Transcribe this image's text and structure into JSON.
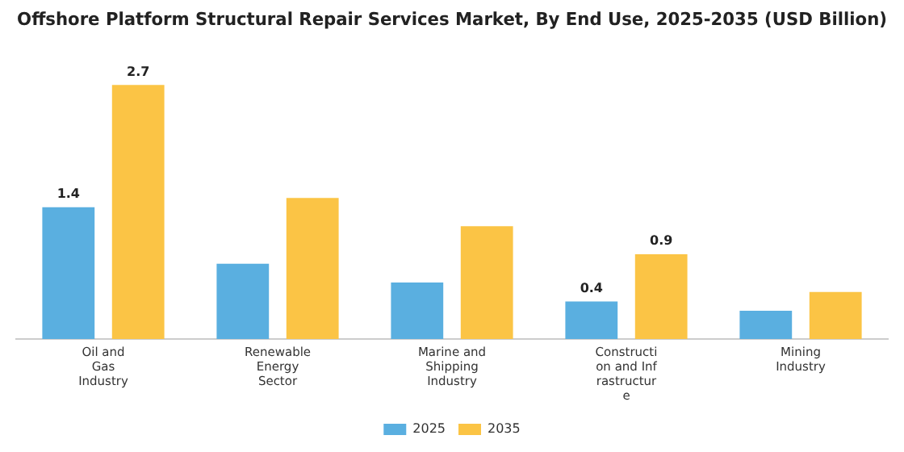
{
  "chart_data": {
    "type": "bar",
    "title": "Offshore Platform Structural Repair Services Market, By End Use, 2025-2035 (USD Billion)",
    "categories": [
      "Oil and Gas Industry",
      "Renewable Energy Sector",
      "Marine and Shipping Industry",
      "Construction and Infrastructure",
      "Mining Industry"
    ],
    "series": [
      {
        "name": "2025",
        "color": "#5aafe0",
        "values": [
          1.4,
          0.8,
          0.6,
          0.4,
          0.3
        ],
        "value_labels": [
          "1.4",
          null,
          null,
          "0.4",
          null
        ]
      },
      {
        "name": "2035",
        "color": "#fbc445",
        "values": [
          2.7,
          1.5,
          1.2,
          0.9,
          0.5
        ],
        "value_labels": [
          "2.7",
          null,
          null,
          "0.9",
          null
        ]
      }
    ],
    "legend": "bottom",
    "grid": false
  }
}
